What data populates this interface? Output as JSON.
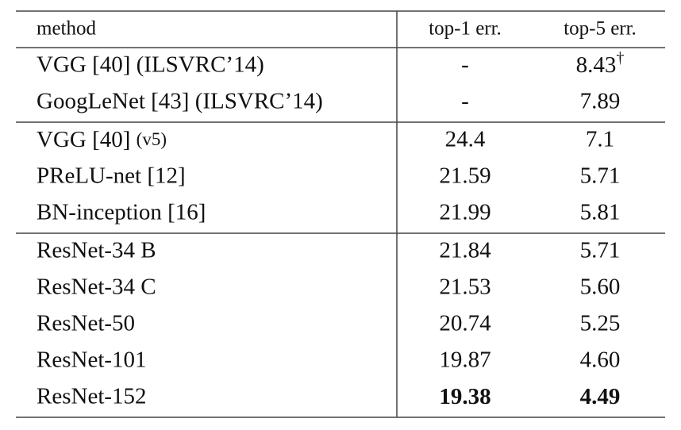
{
  "table": {
    "header": [
      "method",
      "top-1 err.",
      "top-5 err."
    ],
    "groups": [
      [
        [
          "VGG [40] (ILSVRC’14)",
          "-",
          {
            "text": "8.43",
            "sup": "†"
          }
        ],
        [
          "GoogLeNet [43] (ILSVRC’14)",
          "-",
          "7.89"
        ]
      ],
      [
        [
          {
            "text": "VGG [40]",
            "small": "(v5)"
          },
          "24.4",
          "7.1"
        ],
        [
          "PReLU-net [12]",
          "21.59",
          "5.71"
        ],
        [
          "BN-inception [16]",
          "21.99",
          "5.81"
        ]
      ],
      [
        [
          "ResNet-34 B",
          "21.84",
          "5.71"
        ],
        [
          "ResNet-34 C",
          "21.53",
          "5.60"
        ],
        [
          "ResNet-50",
          "20.74",
          "5.25"
        ],
        [
          "ResNet-101",
          "19.87",
          "4.60"
        ],
        [
          "ResNet-152",
          {
            "text": "19.38",
            "bold": true
          },
          {
            "text": "4.49",
            "bold": true
          }
        ]
      ]
    ]
  }
}
